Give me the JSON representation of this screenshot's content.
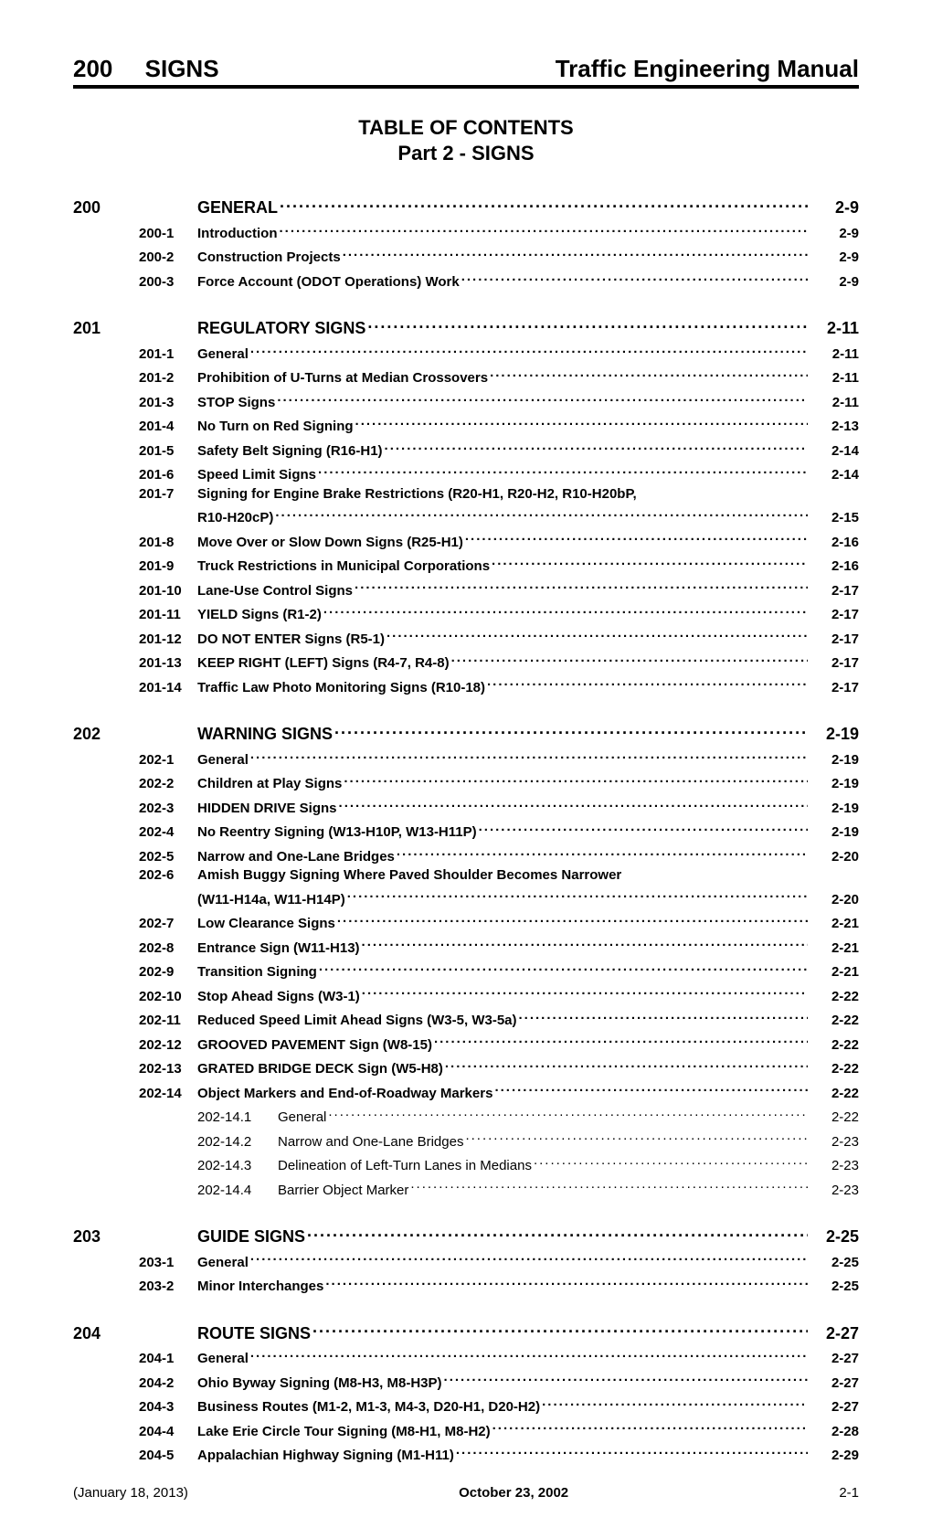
{
  "header": {
    "chapter_num": "200",
    "chapter_title": "SIGNS",
    "manual_title": "Traffic Engineering Manual"
  },
  "toc": {
    "title": "TABLE OF CONTENTS",
    "subtitle": "Part 2 - SIGNS"
  },
  "sections": [
    {
      "num": "200",
      "title": "GENERAL",
      "page": "2-9",
      "entries": [
        {
          "num": "200-1",
          "title": "Introduction",
          "page": "2-9",
          "bold": true
        },
        {
          "num": "200-2",
          "title": "Construction Projects",
          "page": "2-9",
          "bold": true
        },
        {
          "num": "200-3",
          "title": "Force Account (ODOT Operations) Work",
          "page": "2-9",
          "bold": true
        }
      ]
    },
    {
      "num": "201",
      "title": "REGULATORY SIGNS",
      "page": "2-11",
      "entries": [
        {
          "num": "201-1",
          "title": "General",
          "page": "2-11",
          "bold": true
        },
        {
          "num": "201-2",
          "title": "Prohibition of U-Turns at Median Crossovers",
          "page": "2-11",
          "bold": true
        },
        {
          "num": "201-3",
          "title": "STOP Signs",
          "page": "2-11",
          "bold": true
        },
        {
          "num": "201-4",
          "title": "No Turn on Red Signing",
          "page": "2-13",
          "bold": true
        },
        {
          "num": "201-5",
          "title": "Safety Belt Signing (R16-H1)",
          "page": "2-14",
          "bold": true
        },
        {
          "num": "201-6",
          "title": "Speed Limit Signs",
          "page": "2-14",
          "bold": true
        },
        {
          "num": "201-7",
          "title": "Signing for Engine Brake Restrictions (R20-H1, R20-H2, R10-H20bP,",
          "cont": "R10-H20cP)",
          "page": "2-15",
          "bold": true
        },
        {
          "num": "201-8",
          "title": "Move Over or Slow Down Signs (R25-H1)",
          "page": "2-16",
          "bold": true
        },
        {
          "num": "201-9",
          "title": "Truck Restrictions in Municipal Corporations",
          "page": "2-16",
          "bold": true
        },
        {
          "num": "201-10",
          "title": "Lane-Use Control Signs",
          "page": "2-17",
          "bold": true
        },
        {
          "num": "201-11",
          "title": "YIELD Signs (R1-2)",
          "page": "2-17",
          "bold": true
        },
        {
          "num": "201-12",
          "title": "DO NOT ENTER Signs (R5-1)",
          "page": "2-17",
          "bold": true
        },
        {
          "num": "201-13",
          "title": "KEEP RIGHT (LEFT) Signs (R4-7, R4-8)",
          "page": "2-17",
          "bold": true
        },
        {
          "num": "201-14",
          "title": "Traffic Law Photo Monitoring Signs (R10-18)",
          "page": "2-17",
          "bold": true
        }
      ]
    },
    {
      "num": "202",
      "title": "WARNING SIGNS",
      "page": "2-19",
      "entries": [
        {
          "num": "202-1",
          "title": "General",
          "page": "2-19",
          "bold": true
        },
        {
          "num": "202-2",
          "title": "Children at Play Signs",
          "page": "2-19",
          "bold": true
        },
        {
          "num": "202-3",
          "title": "HIDDEN DRIVE Signs",
          "page": "2-19",
          "bold": true
        },
        {
          "num": "202-4",
          "title": "No Reentry Signing (W13-H10P, W13-H11P)",
          "page": "2-19",
          "bold": true
        },
        {
          "num": "202-5",
          "title": "Narrow and One-Lane Bridges",
          "page": "2-20",
          "bold": true
        },
        {
          "num": "202-6",
          "title": "Amish Buggy Signing Where Paved Shoulder Becomes Narrower",
          "cont": "(W11-H14a,  W11-H14P)",
          "page": "2-20",
          "bold": true
        },
        {
          "num": "202-7",
          "title": "Low Clearance Signs",
          "page": "2-21",
          "bold": true
        },
        {
          "num": "202-8",
          "title": "Entrance Sign (W11-H13)",
          "page": "2-21",
          "bold": true
        },
        {
          "num": "202-9",
          "title": "Transition Signing",
          "page": "2-21",
          "bold": true
        },
        {
          "num": "202-10",
          "title": "Stop Ahead Signs (W3-1)",
          "page": "2-22",
          "bold": true
        },
        {
          "num": "202-11",
          "title": "Reduced Speed Limit Ahead Signs (W3-5, W3-5a)",
          "page": "2-22",
          "bold": true
        },
        {
          "num": "202-12",
          "title": "GROOVED PAVEMENT Sign (W8-15)",
          "page": "2-22",
          "bold": true
        },
        {
          "num": "202-13",
          "title": "GRATED BRIDGE DECK Sign (W5-H8)",
          "page": "2-22",
          "bold": true
        },
        {
          "num": "202-14",
          "title": "Object Markers and End-of-Roadway Markers",
          "page": "2-22",
          "bold": true,
          "subs": [
            {
              "num": "202-14.1",
              "title": "General",
              "page": "2-22"
            },
            {
              "num": "202-14.2",
              "title": "Narrow and One-Lane Bridges",
              "page": "2-23"
            },
            {
              "num": "202-14.3",
              "title": "Delineation of Left-Turn Lanes in Medians",
              "page": "2-23"
            },
            {
              "num": "202-14.4",
              "title": "Barrier Object Marker",
              "page": "2-23"
            }
          ]
        }
      ]
    },
    {
      "num": "203",
      "title": "GUIDE SIGNS",
      "page": "2-25",
      "entries": [
        {
          "num": "203-1",
          "title": "General",
          "page": "2-25",
          "bold": true
        },
        {
          "num": "203-2",
          "title": "Minor Interchanges",
          "page": "2-25",
          "bold": true
        }
      ]
    },
    {
      "num": "204",
      "title": "ROUTE SIGNS",
      "page": "2-27",
      "entries": [
        {
          "num": "204-1",
          "title": "General",
          "page": "2-27",
          "bold": true
        },
        {
          "num": "204-2",
          "title": "Ohio Byway Signing (M8-H3, M8-H3P)",
          "page": "2-27",
          "bold": true
        },
        {
          "num": "204-3",
          "title": "Business Routes (M1-2, M1-3, M4-3, D20-H1, D20-H2)",
          "page": "2-27",
          "bold": true
        },
        {
          "num": "204-4",
          "title": "Lake Erie Circle Tour Signing (M8-H1, M8-H2)",
          "page": "2-28",
          "bold": true
        },
        {
          "num": "204-5",
          "title": "Appalachian Highway Signing (M1-H11)",
          "page": "2-29",
          "bold": true
        }
      ]
    }
  ],
  "footer": {
    "left": "(January 18, 2013)",
    "center": "October 23, 2002",
    "right": "2-1"
  }
}
